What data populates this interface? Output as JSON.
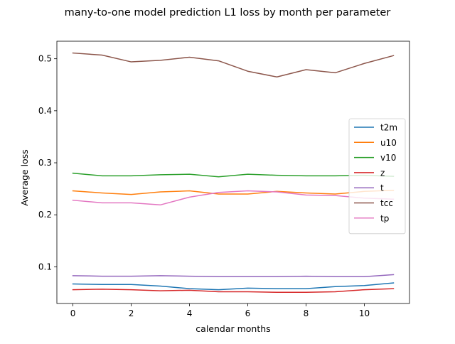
{
  "chart_data": {
    "type": "line",
    "title": "many-to-one model prediction L1 loss by month per parameter",
    "xlabel": "calendar months",
    "ylabel": "Average loss",
    "xlim": [
      -0.55,
      11.55
    ],
    "ylim": [
      0.0295,
      0.5337
    ],
    "x_ticks": [
      0,
      2,
      4,
      6,
      8,
      10
    ],
    "y_ticks": [
      0.1,
      0.2,
      0.3,
      0.4,
      0.5
    ],
    "x_tick_labels": [
      "0",
      "2",
      "4",
      "6",
      "8",
      "10"
    ],
    "y_tick_labels": [
      "0.1",
      "0.2",
      "0.3",
      "0.4",
      "0.5"
    ],
    "grid": false,
    "legend_position": "center-right",
    "x": [
      0,
      1,
      2,
      3,
      4,
      5,
      6,
      7,
      8,
      9,
      10,
      11
    ],
    "series": [
      {
        "name": "t2m",
        "color": "#1f77b4",
        "values": [
          0.067,
          0.066,
          0.066,
          0.063,
          0.058,
          0.056,
          0.059,
          0.058,
          0.058,
          0.062,
          0.064,
          0.069
        ]
      },
      {
        "name": "u10",
        "color": "#ff7f0e",
        "values": [
          0.246,
          0.242,
          0.239,
          0.244,
          0.246,
          0.24,
          0.24,
          0.245,
          0.242,
          0.24,
          0.245,
          0.247
        ]
      },
      {
        "name": "v10",
        "color": "#2ca02c",
        "values": [
          0.28,
          0.275,
          0.275,
          0.277,
          0.278,
          0.273,
          0.278,
          0.276,
          0.275,
          0.275,
          0.276,
          0.274
        ]
      },
      {
        "name": "z",
        "color": "#d62728",
        "values": [
          0.056,
          0.057,
          0.056,
          0.054,
          0.055,
          0.052,
          0.052,
          0.051,
          0.051,
          0.052,
          0.056,
          0.058
        ]
      },
      {
        "name": "t",
        "color": "#9467bd",
        "values": [
          0.083,
          0.082,
          0.082,
          0.083,
          0.082,
          0.081,
          0.081,
          0.081,
          0.082,
          0.081,
          0.081,
          0.085
        ]
      },
      {
        "name": "tcc",
        "color": "#8c564b",
        "values": [
          0.511,
          0.507,
          0.494,
          0.497,
          0.503,
          0.496,
          0.476,
          0.465,
          0.479,
          0.473,
          0.491,
          0.506
        ]
      },
      {
        "name": "tp",
        "color": "#e377c2",
        "values": [
          0.228,
          0.223,
          0.223,
          0.219,
          0.234,
          0.243,
          0.246,
          0.244,
          0.238,
          0.237,
          0.232,
          0.23
        ]
      }
    ]
  }
}
